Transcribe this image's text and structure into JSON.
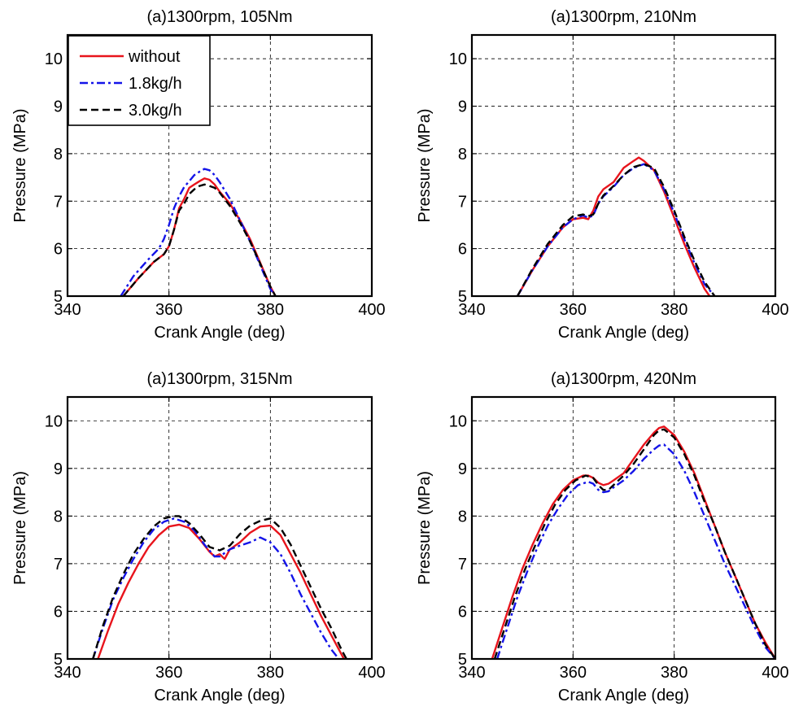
{
  "chart_data": [
    {
      "type": "line",
      "title": "(a)1300rpm, 105Nm",
      "xlabel": "Crank Angle (deg)",
      "ylabel": "Pressure (MPa)",
      "xlim": [
        340,
        400
      ],
      "ylim": [
        5,
        10.5
      ],
      "xticks": [
        340,
        360,
        380,
        400
      ],
      "yticks": [
        5,
        6,
        7,
        8,
        9,
        10
      ],
      "grid": true,
      "legend": "top-left",
      "series": [
        {
          "name": "without",
          "color": "#e8141c",
          "dash": "solid",
          "x": [
            351,
            354,
            357,
            359,
            360,
            361,
            362,
            363,
            364,
            365,
            366,
            367,
            368,
            369,
            370,
            372,
            374,
            376,
            378,
            380,
            381
          ],
          "y": [
            5.0,
            5.38,
            5.72,
            5.88,
            6.05,
            6.4,
            6.85,
            7.05,
            7.28,
            7.35,
            7.42,
            7.48,
            7.45,
            7.35,
            7.2,
            6.95,
            6.6,
            6.2,
            5.7,
            5.2,
            5.0
          ]
        },
        {
          "name": "1.8kg/h",
          "color": "#1414e8",
          "dash": "dashdot",
          "x": [
            350.5,
            353,
            356,
            358,
            359,
            360,
            361,
            362,
            363,
            364,
            365,
            366,
            367,
            368,
            369,
            370,
            372,
            374,
            376,
            378,
            380,
            381
          ],
          "y": [
            5.0,
            5.42,
            5.78,
            6.0,
            6.2,
            6.5,
            6.85,
            7.1,
            7.3,
            7.42,
            7.55,
            7.62,
            7.68,
            7.65,
            7.55,
            7.4,
            7.05,
            6.6,
            6.15,
            5.65,
            5.15,
            5.0
          ]
        },
        {
          "name": "3.0kg/h",
          "color": "#000000",
          "dash": "dash",
          "x": [
            351,
            354,
            357,
            359,
            360,
            361,
            362,
            363,
            364,
            365,
            366,
            367,
            368,
            369,
            370,
            372,
            374,
            376,
            378,
            380,
            381
          ],
          "y": [
            5.0,
            5.38,
            5.72,
            5.88,
            6.05,
            6.4,
            6.8,
            6.95,
            7.15,
            7.25,
            7.32,
            7.35,
            7.32,
            7.28,
            7.18,
            6.9,
            6.55,
            6.15,
            5.68,
            5.2,
            5.0
          ]
        }
      ]
    },
    {
      "type": "line",
      "title": "(a)1300rpm, 210Nm",
      "xlabel": "Crank Angle (deg)",
      "ylabel": "Pressure (MPa)",
      "xlim": [
        340,
        400
      ],
      "ylim": [
        5,
        10.5
      ],
      "xticks": [
        340,
        360,
        380,
        400
      ],
      "yticks": [
        5,
        6,
        7,
        8,
        9,
        10
      ],
      "grid": true,
      "series": [
        {
          "name": "without",
          "color": "#e8141c",
          "dash": "solid",
          "x": [
            349,
            352,
            355,
            358,
            360,
            362,
            363,
            364,
            365,
            366,
            368,
            370,
            372,
            373,
            374,
            376,
            378,
            380,
            382,
            384,
            386,
            387
          ],
          "y": [
            5.0,
            5.55,
            6.05,
            6.45,
            6.62,
            6.65,
            6.62,
            6.8,
            7.1,
            7.25,
            7.4,
            7.7,
            7.85,
            7.92,
            7.85,
            7.65,
            7.2,
            6.65,
            6.1,
            5.6,
            5.15,
            5.0
          ]
        },
        {
          "name": "1.8kg/h",
          "color": "#1414e8",
          "dash": "dashdot",
          "x": [
            349,
            352,
            355,
            358,
            360,
            362,
            363,
            364,
            365,
            366,
            368,
            370,
            372,
            374,
            376,
            378,
            380,
            382,
            384,
            386,
            388
          ],
          "y": [
            5.0,
            5.55,
            6.05,
            6.45,
            6.62,
            6.7,
            6.65,
            6.7,
            6.95,
            7.1,
            7.3,
            7.55,
            7.7,
            7.78,
            7.65,
            7.25,
            6.75,
            6.2,
            5.7,
            5.25,
            5.0
          ]
        },
        {
          "name": "3.0kg/h",
          "color": "#000000",
          "dash": "dash",
          "x": [
            349,
            352,
            355,
            358,
            360,
            362,
            363,
            364,
            365,
            366,
            368,
            370,
            372,
            374,
            376,
            378,
            380,
            382,
            384,
            386,
            388
          ],
          "y": [
            5.0,
            5.58,
            6.1,
            6.5,
            6.68,
            6.72,
            6.68,
            6.72,
            6.95,
            7.12,
            7.32,
            7.55,
            7.72,
            7.78,
            7.7,
            7.3,
            6.8,
            6.25,
            5.75,
            5.3,
            5.0
          ]
        }
      ]
    },
    {
      "type": "line",
      "title": "(a)1300rpm, 315Nm",
      "xlabel": "Crank Angle (deg)",
      "ylabel": "Pressure (MPa)",
      "xlim": [
        340,
        400
      ],
      "ylim": [
        5,
        10.5
      ],
      "xticks": [
        340,
        360,
        380,
        400
      ],
      "yticks": [
        5,
        6,
        7,
        8,
        9,
        10
      ],
      "grid": true,
      "series": [
        {
          "name": "without",
          "color": "#e8141c",
          "dash": "solid",
          "x": [
            346,
            348,
            350,
            352,
            354,
            356,
            358,
            360,
            362,
            364,
            366,
            368,
            369,
            370,
            371,
            372,
            374,
            376,
            378,
            380,
            382,
            384,
            386,
            388,
            390,
            392,
            394.5
          ],
          "y": [
            5.0,
            5.6,
            6.15,
            6.6,
            7.0,
            7.35,
            7.6,
            7.78,
            7.82,
            7.75,
            7.52,
            7.25,
            7.15,
            7.2,
            7.1,
            7.3,
            7.45,
            7.65,
            7.78,
            7.8,
            7.6,
            7.2,
            6.8,
            6.35,
            5.9,
            5.5,
            5.0
          ]
        },
        {
          "name": "1.8kg/h",
          "color": "#1414e8",
          "dash": "dashdot",
          "x": [
            345,
            347,
            349,
            351,
            353,
            355,
            357,
            359,
            361,
            363,
            365,
            367,
            369,
            370,
            372,
            374,
            376,
            378,
            380,
            382,
            384,
            386,
            388,
            390,
            392,
            393.5
          ],
          "y": [
            5.0,
            5.65,
            6.25,
            6.7,
            7.1,
            7.45,
            7.72,
            7.88,
            7.95,
            7.88,
            7.7,
            7.4,
            7.15,
            7.15,
            7.3,
            7.38,
            7.45,
            7.55,
            7.45,
            7.2,
            6.8,
            6.35,
            5.95,
            5.55,
            5.2,
            5.0
          ]
        },
        {
          "name": "3.0kg/h",
          "color": "#000000",
          "dash": "dash",
          "x": [
            345,
            347,
            349,
            351,
            353,
            355,
            357,
            359,
            361,
            362,
            364,
            366,
            368,
            370,
            372,
            374,
            376,
            378,
            380,
            382,
            384,
            386,
            388,
            390,
            392,
            394,
            395
          ],
          "y": [
            5.0,
            5.7,
            6.3,
            6.78,
            7.2,
            7.52,
            7.78,
            7.95,
            8.0,
            8.0,
            7.85,
            7.62,
            7.35,
            7.28,
            7.38,
            7.62,
            7.8,
            7.9,
            7.95,
            7.75,
            7.4,
            6.95,
            6.5,
            6.05,
            5.65,
            5.2,
            5.0
          ]
        }
      ]
    },
    {
      "type": "line",
      "title": "(a)1300rpm, 420Nm",
      "xlabel": "Crank Angle (deg)",
      "ylabel": "Pressure (MPa)",
      "xlim": [
        340,
        400
      ],
      "ylim": [
        5,
        10.5
      ],
      "xticks": [
        340,
        360,
        380,
        400
      ],
      "yticks": [
        5,
        6,
        7,
        8,
        9,
        10
      ],
      "grid": true,
      "series": [
        {
          "name": "without",
          "color": "#e8141c",
          "dash": "solid",
          "x": [
            344,
            346,
            348,
            350,
            352,
            354,
            356,
            358,
            360,
            362,
            363,
            364,
            365,
            366,
            367,
            368,
            370,
            372,
            374,
            376,
            377,
            378,
            380,
            382,
            384,
            386,
            388,
            390,
            392,
            394,
            396,
            398,
            400
          ],
          "y": [
            5.0,
            5.65,
            6.3,
            6.9,
            7.4,
            7.85,
            8.25,
            8.55,
            8.75,
            8.85,
            8.85,
            8.8,
            8.7,
            8.65,
            8.68,
            8.75,
            8.9,
            9.2,
            9.5,
            9.75,
            9.85,
            9.88,
            9.7,
            9.35,
            8.9,
            8.35,
            7.8,
            7.25,
            6.75,
            6.25,
            5.75,
            5.35,
            5.0
          ]
        },
        {
          "name": "1.8kg/h",
          "color": "#1414e8",
          "dash": "dashdot",
          "x": [
            345,
            347,
            349,
            351,
            353,
            355,
            357,
            359,
            361,
            363,
            364,
            365,
            366,
            367,
            368,
            370,
            372,
            374,
            376,
            377,
            378,
            380,
            382,
            384,
            386,
            388,
            390,
            392,
            394,
            396,
            398,
            400
          ],
          "y": [
            5.0,
            5.65,
            6.3,
            6.85,
            7.35,
            7.8,
            8.15,
            8.45,
            8.65,
            8.72,
            8.68,
            8.55,
            8.5,
            8.52,
            8.6,
            8.75,
            8.95,
            9.2,
            9.4,
            9.48,
            9.5,
            9.3,
            8.95,
            8.5,
            8.0,
            7.5,
            7.0,
            6.55,
            6.1,
            5.65,
            5.25,
            5.0
          ]
        },
        {
          "name": "3.0kg/h",
          "color": "#000000",
          "dash": "dash",
          "x": [
            344.5,
            346.5,
            348.5,
            350.5,
            352.5,
            354.5,
            356.5,
            358.5,
            360.5,
            362.5,
            364,
            365,
            366,
            367,
            368,
            370,
            372,
            374,
            376,
            377,
            378,
            380,
            382,
            384,
            386,
            388,
            390,
            392,
            394,
            396,
            398,
            400
          ],
          "y": [
            5.0,
            5.65,
            6.3,
            6.88,
            7.38,
            7.85,
            8.25,
            8.55,
            8.75,
            8.85,
            8.8,
            8.65,
            8.55,
            8.55,
            8.65,
            8.85,
            9.1,
            9.4,
            9.7,
            9.8,
            9.82,
            9.65,
            9.3,
            8.85,
            8.3,
            7.8,
            7.25,
            6.75,
            6.25,
            5.75,
            5.3,
            5.0
          ]
        }
      ]
    }
  ]
}
